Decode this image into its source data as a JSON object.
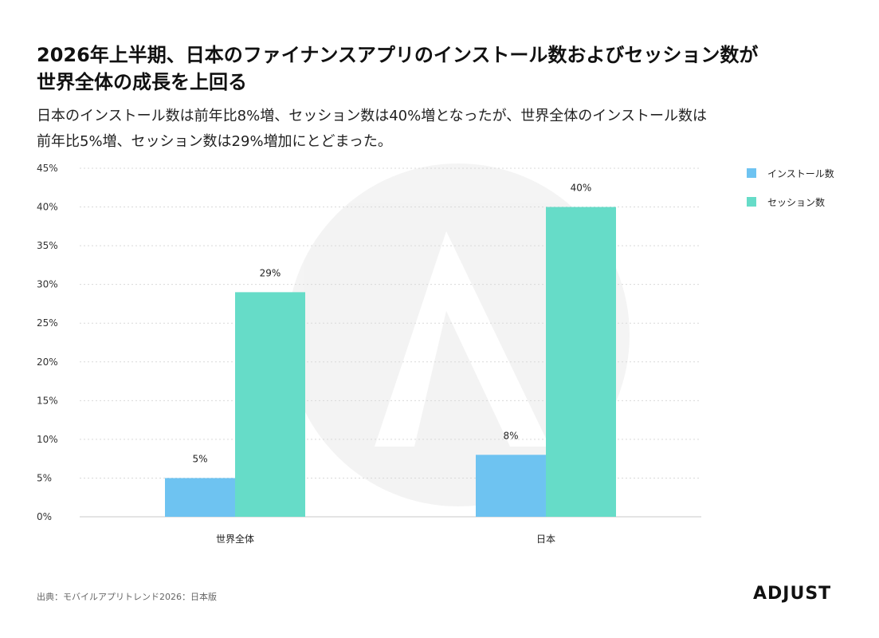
{
  "chart_data": {
    "type": "bar",
    "title_lines": [
      "2026年上半期、日本のファイナンスアプリのインストール数およびセッション数が",
      "世界全体の成長を上回る"
    ],
    "subtitle_lines": [
      "日本のインストール数は前年比8%増、セッション数は40%増となったが、世界全体のインストール数は",
      "前年比5%増、セッション数は29%増加にとどまった。"
    ],
    "categories": [
      "世界全体",
      "日本"
    ],
    "series": [
      {
        "name": "インストール数",
        "values": [
          5,
          8
        ],
        "labels": [
          "5%",
          "8%"
        ],
        "color": "#6EC3F1"
      },
      {
        "name": "セッション数",
        "values": [
          29,
          40
        ],
        "labels": [
          "29%",
          "40%"
        ],
        "color": "#66DCC8"
      }
    ],
    "yticks": [
      {
        "value": 0,
        "label": "0%"
      },
      {
        "value": 5,
        "label": "5%"
      },
      {
        "value": 10,
        "label": "10%"
      },
      {
        "value": 15,
        "label": "15%"
      },
      {
        "value": 20,
        "label": "20%"
      },
      {
        "value": 25,
        "label": "25%"
      },
      {
        "value": 30,
        "label": "30%"
      },
      {
        "value": 35,
        "label": "35%"
      },
      {
        "value": 40,
        "label": "40%"
      },
      {
        "value": 45,
        "label": "45%"
      }
    ],
    "ylim": [
      0,
      45
    ],
    "grid": true,
    "legend_position": "top-right"
  },
  "footer": {
    "source": "出典：モバイルアプリトレンド2026：日本版",
    "logo": "ADJUST"
  }
}
